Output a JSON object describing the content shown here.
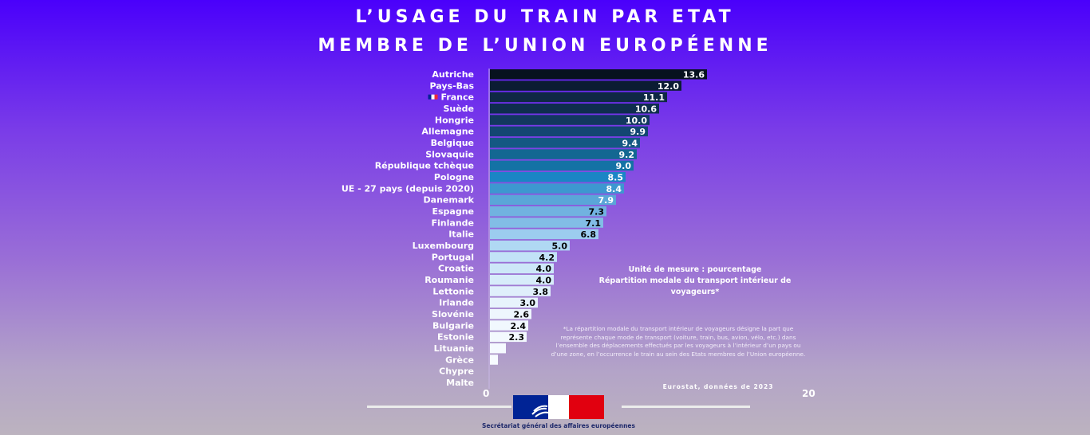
{
  "header": {
    "title_line1": "L’USAGE DU TRAIN PAR ETAT",
    "title_line2": "MEMBRE DE L’UNION EUROPÉENNE"
  },
  "chart_data": {
    "type": "bar",
    "orientation": "horizontal",
    "title": "L’USAGE DU TRAIN PAR ETAT MEMBRE DE L’UNION EUROPÉENNE",
    "xlabel": "",
    "ylabel": "",
    "xlim": [
      0,
      20
    ],
    "x_ticks": [
      "0",
      "20"
    ],
    "grid": false,
    "categories": [
      "Autriche",
      "Pays-Bas",
      "France",
      "Suède",
      "Hongrie",
      "Allemagne",
      "Belgique",
      "Slovaquie",
      "République tchèque",
      "Pologne",
      "UE - 27 pays (depuis 2020)",
      "Danemark",
      "Espagne",
      "Finlande",
      "Italie",
      "Luxembourg",
      "Portugal",
      "Croatie",
      "Roumanie",
      "Lettonie",
      "Irlande",
      "Slovénie",
      "Bulgarie",
      "Estonie",
      "Lituanie",
      "Grèce",
      "Chypre",
      "Malte"
    ],
    "values": [
      13.6,
      12.0,
      11.1,
      10.6,
      10.0,
      9.9,
      9.4,
      9.2,
      9.0,
      8.5,
      8.4,
      7.9,
      7.3,
      7.1,
      6.8,
      5.0,
      4.2,
      4.0,
      4.0,
      3.8,
      3.0,
      2.6,
      2.4,
      2.3,
      1.0,
      0.5,
      0,
      0
    ],
    "value_labels": [
      "13.6",
      "12.0",
      "11.1",
      "10.6",
      "10.0",
      "9.9",
      "9.4",
      "9.2",
      "9.0",
      "8.5",
      "8.4",
      "7.9",
      "7.3",
      "7.1",
      "6.8",
      "5.0",
      "4.2",
      "4.0",
      "4.0",
      "3.8",
      "3.0",
      "2.6",
      "2.4",
      "2.3",
      "",
      "",
      "",
      ""
    ],
    "colors": [
      "#07121f",
      "#0b1c33",
      "#0f2844",
      "#0f2d4e",
      "#12385f",
      "#134672",
      "#145883",
      "#136792",
      "#1472a5",
      "#1a85c5",
      "#3d97d0",
      "#5aa6d8",
      "#71b2e0",
      "#82bde6",
      "#9cccef",
      "#b0d8f3",
      "#c2e2f7",
      "#cde7f8",
      "#d7ecfa",
      "#dfeffb",
      "#e7f3fc",
      "#eef6fd",
      "#f1f8fe",
      "#f3f9fe",
      "#f5faff",
      "#f7fbff",
      "#ffffff",
      "#ffffff"
    ],
    "label_colors": [
      "#ffffff",
      "#ffffff",
      "#ffffff",
      "#ffffff",
      "#ffffff",
      "#ffffff",
      "#ffffff",
      "#ffffff",
      "#ffffff",
      "#ffffff",
      "#ffffff",
      "#ffffff",
      "#000000",
      "#000000",
      "#000000",
      "#000000",
      "#000000",
      "#000000",
      "#000000",
      "#000000",
      "#000000",
      "#000000",
      "#000000",
      "#000000",
      "#000000",
      "#000000",
      "#000000",
      "#000000"
    ],
    "highlight": {
      "category": "France",
      "icon": "french-flag-icon"
    },
    "unit_note": "Unité de mesure : pourcentage",
    "measure_note": "Répartition modale du transport intérieur de voyageurs*",
    "footnote": "*La répartition modale du transport intérieur de voyageurs désigne la part que représente chaque mode de transport (voiture, train, bus, avion, vélo, etc.) dans l’ensemble des déplacements effectués par les voyageurs à l’intérieur d’un pays ou d’une zone, en l’occurrence le train au sein des Etats membres de l’Union européenne.",
    "source": "Eurostat, données de 2023"
  },
  "footer": {
    "organization": "Secrétariat général des affaires européennes",
    "logo": "marianne-logo"
  },
  "colors": {
    "flag_blue": "#002395",
    "flag_red": "#ed2939",
    "org_text": "#1f2a6b"
  }
}
